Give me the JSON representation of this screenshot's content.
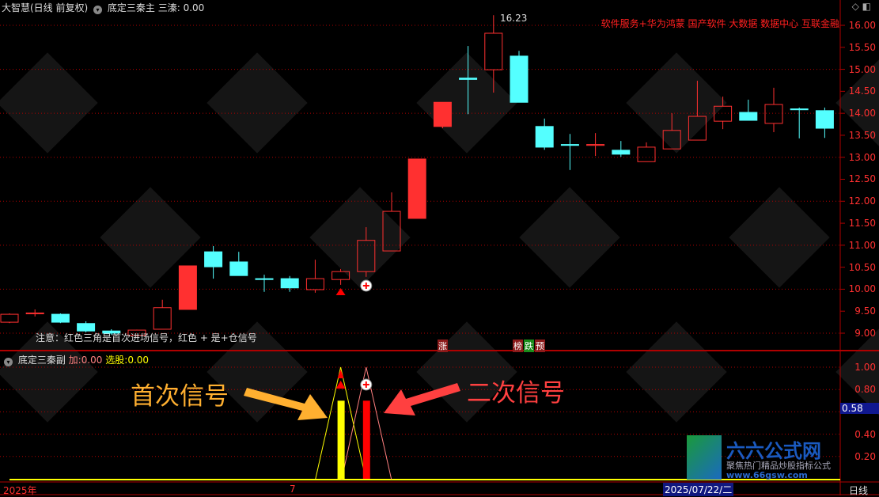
{
  "header": {
    "stock": "大智慧(日线 前复权)",
    "indicator": "底定三秦主",
    "param_label": "三溱:",
    "param_value": "0.00"
  },
  "concepts": "软件服务+华为鸿蒙 国产软件 大数据 数据中心 互联金融",
  "note": "注意：红色三角是首次进场信号，红色 + 是+仓信号",
  "badges": [
    {
      "text": "涨",
      "color": "#8b1a1a"
    },
    {
      "text": "榜",
      "color": "#8b1a1a"
    },
    {
      "text": "跌",
      "color": "#1a8b1a"
    },
    {
      "text": "预",
      "color": "#8b1a1a"
    }
  ],
  "sub": {
    "indicator": "底定三秦副",
    "add_label": "加:",
    "add_value": "0.00",
    "pick_label": "选股:",
    "pick_value": "0.00",
    "current": "0.58"
  },
  "annotations": {
    "first": "首次信号",
    "second": "二次信号",
    "high": "16.23"
  },
  "price_axis": [
    "16.00",
    "15.50",
    "15.00",
    "14.50",
    "14.00",
    "13.50",
    "13.00",
    "12.50",
    "12.00",
    "11.50",
    "11.00",
    "10.50",
    "10.00",
    "9.50",
    "9.00"
  ],
  "sub_axis": [
    "1.00",
    "0.80",
    "0.40",
    "0.20"
  ],
  "time_axis": {
    "start": "2025年",
    "month": "7",
    "cursor": "2025/07/22/二",
    "period": "日线"
  },
  "logo": {
    "name": "六六公式网",
    "slogan": "聚焦热门精品炒股指标公式",
    "url": "www.66gsw.com"
  },
  "colors": {
    "up": "#ff3030",
    "down": "#54ffff",
    "grid": "#b00000",
    "first": "#ffff00",
    "second": "#ff0000"
  },
  "chart_data": {
    "type": "candlestick",
    "candles": [
      [
        9.25,
        9.45,
        9.23,
        9.43
      ],
      [
        9.44,
        9.54,
        9.38,
        9.46
      ],
      [
        9.43,
        9.45,
        9.23,
        9.25
      ],
      [
        9.22,
        9.27,
        9.02,
        9.05
      ],
      [
        9.05,
        9.09,
        8.96,
        9.0
      ],
      [
        8.95,
        9.08,
        8.93,
        9.07
      ],
      [
        9.09,
        9.76,
        9.09,
        9.58
      ],
      [
        9.54,
        10.53,
        9.54,
        10.53
      ],
      [
        10.85,
        10.98,
        10.24,
        10.51
      ],
      [
        10.62,
        10.85,
        10.31,
        10.31
      ],
      [
        10.24,
        10.33,
        9.94,
        10.22
      ],
      [
        10.24,
        10.3,
        9.94,
        10.03
      ],
      [
        9.99,
        10.67,
        9.92,
        10.24
      ],
      [
        10.22,
        10.46,
        10.1,
        10.4
      ],
      [
        10.4,
        11.41,
        10.28,
        11.11
      ],
      [
        10.87,
        12.2,
        10.87,
        11.77
      ],
      [
        11.61,
        12.96,
        11.61,
        12.96
      ],
      [
        13.7,
        14.25,
        13.66,
        14.25
      ],
      [
        14.8,
        15.53,
        13.98,
        14.77
      ],
      [
        14.99,
        16.23,
        14.47,
        15.82
      ],
      [
        15.3,
        15.42,
        14.25,
        14.25
      ],
      [
        13.7,
        13.88,
        13.17,
        13.23
      ],
      [
        13.29,
        13.53,
        12.71,
        13.27
      ],
      [
        13.27,
        13.55,
        13.03,
        13.29
      ],
      [
        13.16,
        13.37,
        13.01,
        13.07
      ],
      [
        12.9,
        13.34,
        12.9,
        13.23
      ],
      [
        13.19,
        14.0,
        13.19,
        13.61
      ],
      [
        13.39,
        14.74,
        13.39,
        13.93
      ],
      [
        13.82,
        14.38,
        13.64,
        14.16
      ],
      [
        14.02,
        14.31,
        13.84,
        13.84
      ],
      [
        13.77,
        14.58,
        13.57,
        14.2
      ],
      [
        14.1,
        14.13,
        13.43,
        14.08
      ],
      [
        14.06,
        14.13,
        13.44,
        13.66
      ]
    ],
    "fields": [
      "open",
      "high",
      "low",
      "close"
    ],
    "filled_up": [
      7,
      16,
      17
    ],
    "signals": {
      "first_triangle_index": 13,
      "second_plus_index": 14
    },
    "sub_values": {
      "first_bar": 0.7,
      "second_bar": 0.7,
      "peak": 1.0
    },
    "ylim": [
      8.9,
      16.3
    ]
  }
}
